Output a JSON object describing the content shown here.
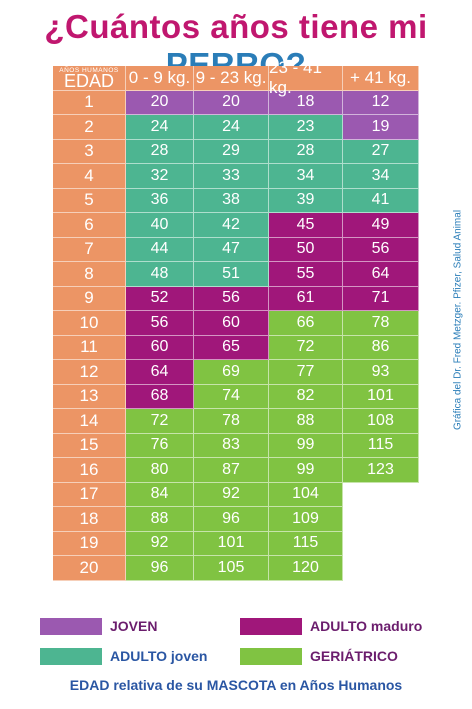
{
  "title": {
    "prefix": "¿Cuántos años tiene mi",
    "highlight": "PERRO?"
  },
  "table": {
    "header_small": "AÑOS HUMANOS",
    "header_age": "EDAD",
    "headers": [
      "0 - 9 kg.",
      "9 - 23 kg.",
      "23 - 41 kg.",
      "+ 41 kg."
    ],
    "rows": [
      {
        "age": "1",
        "values": [
          "20",
          "20",
          "18",
          "12"
        ],
        "stages": [
          "joven",
          "joven",
          "joven",
          "joven"
        ]
      },
      {
        "age": "2",
        "values": [
          "24",
          "24",
          "23",
          "19"
        ],
        "stages": [
          "adulto_joven",
          "adulto_joven",
          "adulto_joven",
          "joven"
        ]
      },
      {
        "age": "3",
        "values": [
          "28",
          "29",
          "28",
          "27"
        ],
        "stages": [
          "adulto_joven",
          "adulto_joven",
          "adulto_joven",
          "adulto_joven"
        ]
      },
      {
        "age": "4",
        "values": [
          "32",
          "33",
          "34",
          "34"
        ],
        "stages": [
          "adulto_joven",
          "adulto_joven",
          "adulto_joven",
          "adulto_joven"
        ]
      },
      {
        "age": "5",
        "values": [
          "36",
          "38",
          "39",
          "41"
        ],
        "stages": [
          "adulto_joven",
          "adulto_joven",
          "adulto_joven",
          "adulto_joven"
        ]
      },
      {
        "age": "6",
        "values": [
          "40",
          "42",
          "45",
          "49"
        ],
        "stages": [
          "adulto_joven",
          "adulto_joven",
          "adulto_maduro",
          "adulto_maduro"
        ]
      },
      {
        "age": "7",
        "values": [
          "44",
          "47",
          "50",
          "56"
        ],
        "stages": [
          "adulto_joven",
          "adulto_joven",
          "adulto_maduro",
          "adulto_maduro"
        ]
      },
      {
        "age": "8",
        "values": [
          "48",
          "51",
          "55",
          "64"
        ],
        "stages": [
          "adulto_joven",
          "adulto_joven",
          "adulto_maduro",
          "adulto_maduro"
        ]
      },
      {
        "age": "9",
        "values": [
          "52",
          "56",
          "61",
          "71"
        ],
        "stages": [
          "adulto_maduro",
          "adulto_maduro",
          "adulto_maduro",
          "adulto_maduro"
        ]
      },
      {
        "age": "10",
        "values": [
          "56",
          "60",
          "66",
          "78"
        ],
        "stages": [
          "adulto_maduro",
          "adulto_maduro",
          "geriatrico",
          "geriatrico"
        ]
      },
      {
        "age": "11",
        "values": [
          "60",
          "65",
          "72",
          "86"
        ],
        "stages": [
          "adulto_maduro",
          "adulto_maduro",
          "geriatrico",
          "geriatrico"
        ]
      },
      {
        "age": "12",
        "values": [
          "64",
          "69",
          "77",
          "93"
        ],
        "stages": [
          "adulto_maduro",
          "geriatrico",
          "geriatrico",
          "geriatrico"
        ]
      },
      {
        "age": "13",
        "values": [
          "68",
          "74",
          "82",
          "101"
        ],
        "stages": [
          "adulto_maduro",
          "geriatrico",
          "geriatrico",
          "geriatrico"
        ]
      },
      {
        "age": "14",
        "values": [
          "72",
          "78",
          "88",
          "108"
        ],
        "stages": [
          "geriatrico",
          "geriatrico",
          "geriatrico",
          "geriatrico"
        ]
      },
      {
        "age": "15",
        "values": [
          "76",
          "83",
          "99",
          "115"
        ],
        "stages": [
          "geriatrico",
          "geriatrico",
          "geriatrico",
          "geriatrico"
        ]
      },
      {
        "age": "16",
        "values": [
          "80",
          "87",
          "99",
          "123"
        ],
        "stages": [
          "geriatrico",
          "geriatrico",
          "geriatrico",
          "geriatrico"
        ]
      },
      {
        "age": "17",
        "values": [
          "84",
          "92",
          "104",
          ""
        ],
        "stages": [
          "geriatrico",
          "geriatrico",
          "geriatrico",
          "none"
        ]
      },
      {
        "age": "18",
        "values": [
          "88",
          "96",
          "109",
          ""
        ],
        "stages": [
          "geriatrico",
          "geriatrico",
          "geriatrico",
          "none"
        ]
      },
      {
        "age": "19",
        "values": [
          "92",
          "101",
          "115",
          ""
        ],
        "stages": [
          "geriatrico",
          "geriatrico",
          "geriatrico",
          "none"
        ]
      },
      {
        "age": "20",
        "values": [
          "96",
          "105",
          "120",
          ""
        ],
        "stages": [
          "geriatrico",
          "geriatrico",
          "geriatrico",
          "none"
        ]
      }
    ]
  },
  "colors": {
    "title": "#c0176f",
    "title_highlight": "#2a7db8",
    "age_column": "#ec9565",
    "joven": "#9b59b0",
    "adulto_joven": "#4db591",
    "adulto_maduro": "#a0177a",
    "geriatrico": "#80c342",
    "none": "#ffffff"
  },
  "legend": [
    {
      "key": "joven",
      "label": "JOVEN"
    },
    {
      "key": "adulto_maduro",
      "label": "ADULTO maduro"
    },
    {
      "key": "adulto_joven",
      "label": "ADULTO joven"
    },
    {
      "key": "geriatrico",
      "label": "GERIÁTRICO"
    }
  ],
  "footer": "EDAD relativa de su MASCOTA en Años Humanos",
  "credit": "Gráfica del Dr. Fred Metzger. Pfizer, Salud Animal"
}
